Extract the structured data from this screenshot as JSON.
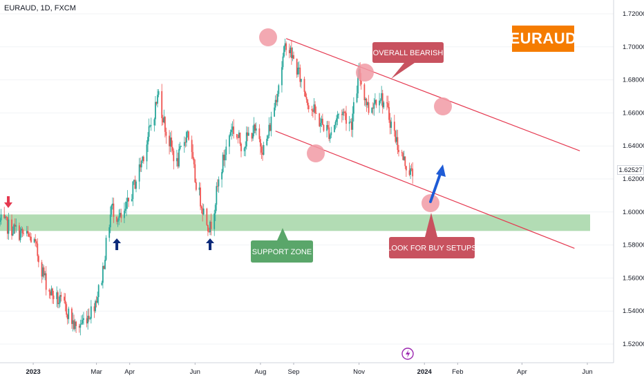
{
  "header": {
    "symbol_label": "EURAUD, 1D, FXCM"
  },
  "badge": {
    "text": "EURAUD",
    "color": "#f57c00"
  },
  "colors": {
    "up": "#26a69a",
    "down": "#ef5350",
    "channel": "#e53950",
    "support_zone": "#a5d6a7",
    "annotation_red": "#c8525f",
    "annotation_green": "#5aa66a",
    "arrow_navy": "#0d2a7a",
    "arrow_blue": "#1e5bd6",
    "marker_red": "#e53950",
    "circle": "#f19aa4"
  },
  "chart_data": {
    "type": "candlestick",
    "x_ticks": [
      "2023",
      "Mar",
      "Apr",
      "Jun",
      "Aug",
      "Sep",
      "Nov",
      "2024",
      "Feb",
      "Apr",
      "Jun"
    ],
    "y_ticks": [
      "1.72000",
      "1.70000",
      "1.68000",
      "1.66000",
      "1.64000",
      "1.62000",
      "1.60000",
      "1.58000",
      "1.56000",
      "1.54000",
      "1.52000"
    ],
    "ylim": [
      1.51,
      1.725
    ],
    "last_price": "1.62527",
    "support_zone": [
      1.5885,
      1.5985
    ],
    "series_anchors": [
      [
        "2022-12-01",
        1.594
      ],
      [
        "2023-01-01",
        1.583
      ],
      [
        "2023-01-15",
        1.553
      ],
      [
        "2023-02-01",
        1.541
      ],
      [
        "2023-02-10",
        1.529
      ],
      [
        "2023-02-25",
        1.541
      ],
      [
        "2023-03-05",
        1.556
      ],
      [
        "2023-03-15",
        1.603
      ],
      [
        "2023-03-25",
        1.594
      ],
      [
        "2023-04-01",
        1.608
      ],
      [
        "2023-04-10",
        1.626
      ],
      [
        "2023-04-20",
        1.65
      ],
      [
        "2023-04-28",
        1.672
      ],
      [
        "2023-05-05",
        1.648
      ],
      [
        "2023-05-15",
        1.629
      ],
      [
        "2023-05-25",
        1.65
      ],
      [
        "2023-06-01",
        1.62
      ],
      [
        "2023-06-10",
        1.598
      ],
      [
        "2023-06-15",
        1.59
      ],
      [
        "2023-06-25",
        1.625
      ],
      [
        "2023-07-05",
        1.652
      ],
      [
        "2023-07-15",
        1.64
      ],
      [
        "2023-07-25",
        1.65
      ],
      [
        "2023-08-05",
        1.637
      ],
      [
        "2023-08-15",
        1.668
      ],
      [
        "2023-08-25",
        1.703
      ],
      [
        "2023-09-05",
        1.685
      ],
      [
        "2023-09-15",
        1.666
      ],
      [
        "2023-09-25",
        1.655
      ],
      [
        "2023-10-05",
        1.648
      ],
      [
        "2023-10-15",
        1.662
      ],
      [
        "2023-10-25",
        1.654
      ],
      [
        "2023-11-01",
        1.683
      ],
      [
        "2023-11-10",
        1.662
      ],
      [
        "2023-11-20",
        1.672
      ],
      [
        "2023-11-28",
        1.66
      ],
      [
        "2023-12-05",
        1.645
      ],
      [
        "2023-12-12",
        1.632
      ],
      [
        "2023-12-20",
        1.623
      ]
    ],
    "channel_upper": [
      [
        "2023-08-25",
        1.705
      ],
      [
        "2024-05-25",
        1.637
      ]
    ],
    "channel_lower": [
      [
        "2023-08-15",
        1.649
      ],
      [
        "2024-05-20",
        1.578
      ]
    ],
    "up_arrows": [
      "2023-03-20",
      "2023-06-15"
    ],
    "down_arrow": "2022-12-01"
  },
  "annotations": {
    "overall_bearish": "OVERALL BEARISH",
    "support_zone": "SUPPORT ZONE",
    "look_for_buy": "LOOK FOR BUY SETUPS"
  },
  "icons": {
    "event_marker": "lightning-icon"
  }
}
